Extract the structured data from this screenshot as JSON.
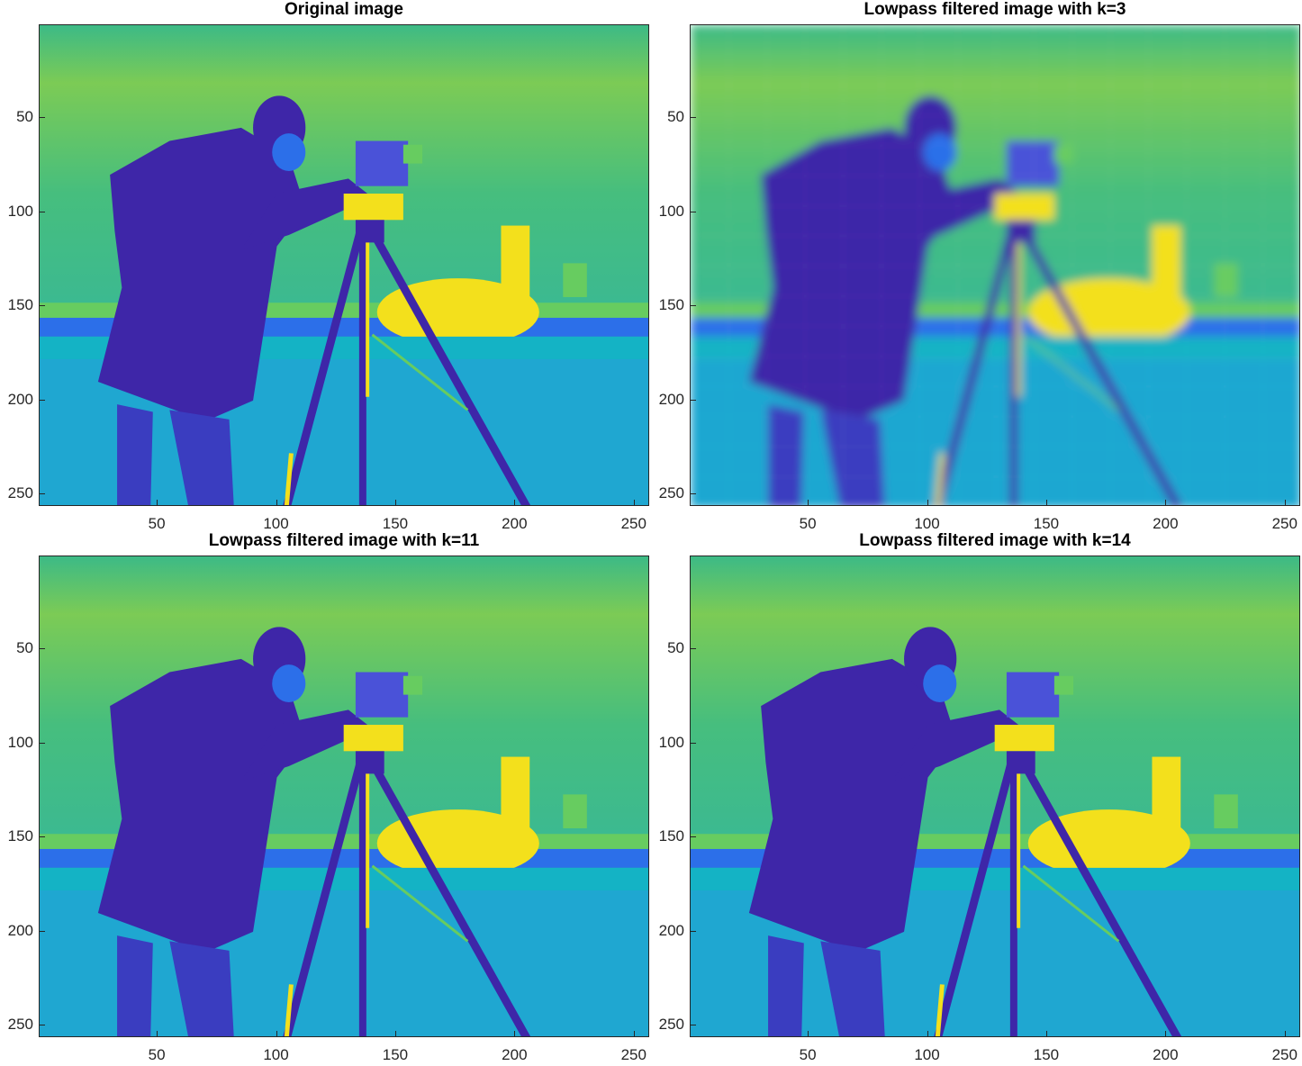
{
  "colors": {
    "low": "#3e26a8",
    "low_mid": "#2c6fe9",
    "mid": "#14b3c5",
    "high_mid": "#67cc60",
    "high": "#f3e01c",
    "sky": "#4fc07a",
    "frame": "#262626"
  },
  "chart_data": [
    {
      "type": "heatmap",
      "title": "Original image",
      "xlabel": "",
      "ylabel": "",
      "xlim": [
        0.5,
        256.5
      ],
      "ylim": [
        0.5,
        256.5
      ],
      "y_direction": "reverse",
      "x_ticks": [
        "50",
        "100",
        "150",
        "200",
        "250"
      ],
      "y_ticks": [
        "50",
        "100",
        "150",
        "200",
        "250"
      ],
      "colormap": "parula",
      "k": null
    },
    {
      "type": "heatmap",
      "title": "Lowpass filtered image with k=3",
      "xlabel": "",
      "ylabel": "",
      "xlim": [
        0.5,
        256.5
      ],
      "ylim": [
        0.5,
        256.5
      ],
      "y_direction": "reverse",
      "x_ticks": [
        "50",
        "100",
        "150",
        "200",
        "250"
      ],
      "y_ticks": [
        "50",
        "100",
        "150",
        "200",
        "250"
      ],
      "colormap": "parula",
      "k": 3
    },
    {
      "type": "heatmap",
      "title": "Lowpass filtered image with k=11",
      "xlabel": "",
      "ylabel": "",
      "xlim": [
        0.5,
        256.5
      ],
      "ylim": [
        0.5,
        256.5
      ],
      "y_direction": "reverse",
      "x_ticks": [
        "50",
        "100",
        "150",
        "200",
        "250"
      ],
      "y_ticks": [
        "50",
        "100",
        "150",
        "200",
        "250"
      ],
      "colormap": "parula",
      "k": 11
    },
    {
      "type": "heatmap",
      "title": "Lowpass filtered image with k=14",
      "xlabel": "",
      "ylabel": "",
      "xlim": [
        0.5,
        256.5
      ],
      "ylim": [
        0.5,
        256.5
      ],
      "y_direction": "reverse",
      "x_ticks": [
        "50",
        "100",
        "150",
        "200",
        "250"
      ],
      "y_ticks": [
        "50",
        "100",
        "150",
        "200",
        "250"
      ],
      "colormap": "parula",
      "k": 14
    }
  ]
}
